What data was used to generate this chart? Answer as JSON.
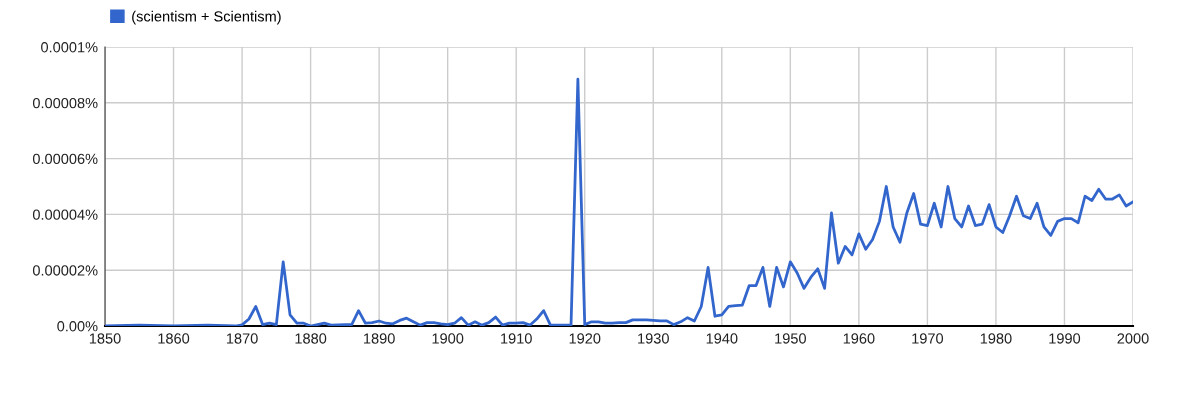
{
  "chart_data": {
    "type": "line",
    "legend": "top left",
    "grid": true,
    "marker": "none",
    "line_style": "solid",
    "x": [
      1850,
      1855,
      1860,
      1865,
      1869,
      1870,
      1871,
      1872,
      1873,
      1874,
      1875,
      1876,
      1877,
      1878,
      1879,
      1880,
      1882,
      1883,
      1885,
      1886,
      1887,
      1888,
      1889,
      1890,
      1891,
      1892,
      1893,
      1894,
      1895,
      1896,
      1897,
      1898,
      1899,
      1900,
      1901,
      1902,
      1903,
      1904,
      1905,
      1906,
      1907,
      1908,
      1909,
      1910,
      1911,
      1912,
      1913,
      1914,
      1915,
      1916,
      1917,
      1918,
      1919,
      1920,
      1921,
      1922,
      1923,
      1924,
      1925,
      1926,
      1927,
      1928,
      1929,
      1930,
      1931,
      1932,
      1933,
      1934,
      1935,
      1936,
      1937,
      1938,
      1939,
      1940,
      1941,
      1942,
      1943,
      1944,
      1945,
      1946,
      1947,
      1948,
      1949,
      1950,
      1951,
      1952,
      1953,
      1954,
      1955,
      1956,
      1957,
      1958,
      1959,
      1960,
      1961,
      1962,
      1963,
      1964,
      1965,
      1966,
      1967,
      1968,
      1969,
      1970,
      1971,
      1972,
      1973,
      1974,
      1975,
      1976,
      1977,
      1978,
      1979,
      1980,
      1981,
      1982,
      1983,
      1984,
      1985,
      1986,
      1987,
      1988,
      1989,
      1990,
      1991,
      1992,
      1993,
      1994,
      1995,
      1996,
      1997,
      1998,
      1999,
      2000
    ],
    "series": [
      {
        "name": "(scientism + Scientism)",
        "color": "#3366cc",
        "values": [
          0,
          3e-07,
          0,
          3e-07,
          0,
          4e-07,
          2.5e-06,
          7e-06,
          5e-07,
          1e-06,
          5e-07,
          2.3e-05,
          4e-06,
          1e-06,
          1e-06,
          0,
          1e-06,
          3e-07,
          5e-07,
          5e-07,
          5.5e-06,
          1e-06,
          1.2e-06,
          1.8e-06,
          1e-06,
          8e-07,
          2e-06,
          2.8e-06,
          1.5e-06,
          3e-07,
          1.2e-06,
          1.2e-06,
          8e-07,
          5e-07,
          1e-06,
          3e-06,
          3e-07,
          1.5e-06,
          3e-07,
          1.2e-06,
          3.2e-06,
          3e-07,
          1e-06,
          1e-06,
          1.2e-06,
          3e-07,
          2.5e-06,
          5.5e-06,
          3e-07,
          3e-07,
          3e-07,
          3e-07,
          8.85e-05,
          5e-07,
          1.5e-06,
          1.5e-06,
          1e-06,
          1e-06,
          1.2e-06,
          1.2e-06,
          2.2e-06,
          2.2e-06,
          2.2e-06,
          2e-06,
          1.8e-06,
          1.8e-06,
          5e-07,
          1.5e-06,
          3e-06,
          1.8e-06,
          7e-06,
          2.1e-05,
          3.5e-06,
          4e-06,
          7e-06,
          7.3e-06,
          7.5e-06,
          1.45e-05,
          1.45e-05,
          2.1e-05,
          7e-06,
          2.1e-05,
          1.4e-05,
          2.3e-05,
          1.9e-05,
          1.35e-05,
          1.75e-05,
          2.05e-05,
          1.35e-05,
          4.05e-05,
          2.25e-05,
          2.85e-05,
          2.55e-05,
          3.3e-05,
          2.75e-05,
          3.1e-05,
          3.75e-05,
          5e-05,
          3.55e-05,
          3e-05,
          4.05e-05,
          4.75e-05,
          3.65e-05,
          3.6e-05,
          4.4e-05,
          3.55e-05,
          5e-05,
          3.85e-05,
          3.55e-05,
          4.3e-05,
          3.6e-05,
          3.65e-05,
          4.35e-05,
          3.55e-05,
          3.35e-05,
          3.95e-05,
          4.65e-05,
          3.95e-05,
          3.85e-05,
          4.4e-05,
          3.55e-05,
          3.25e-05,
          3.75e-05,
          3.85e-05,
          3.85e-05,
          3.7e-05,
          4.65e-05,
          4.5e-05,
          4.9e-05,
          4.55e-05,
          4.55e-05,
          4.7e-05,
          4.3e-05,
          4.45e-05
        ]
      }
    ],
    "xlim": [
      1850,
      2000
    ],
    "xticks": [
      1850,
      1860,
      1870,
      1880,
      1890,
      1900,
      1910,
      1920,
      1930,
      1940,
      1950,
      1960,
      1970,
      1980,
      1990,
      2000
    ],
    "ylim": [
      0,
      0.0001
    ],
    "yticks": [
      {
        "value": 0,
        "label": "0.00%"
      },
      {
        "value": 2e-05,
        "label": "0.00002%"
      },
      {
        "value": 4e-05,
        "label": "0.00004%"
      },
      {
        "value": 6e-05,
        "label": "0.00006%"
      },
      {
        "value": 8e-05,
        "label": "0.00008%"
      },
      {
        "value": 0.0001,
        "label": "0.0001%"
      }
    ]
  }
}
